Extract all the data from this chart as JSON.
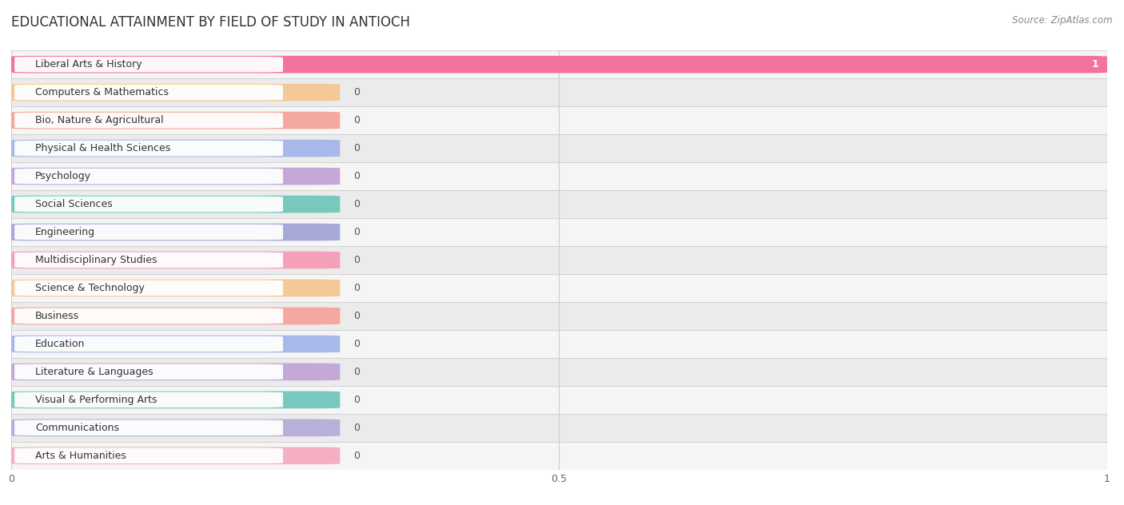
{
  "title": "EDUCATIONAL ATTAINMENT BY FIELD OF STUDY IN ANTIOCH",
  "source": "Source: ZipAtlas.com",
  "categories": [
    "Liberal Arts & History",
    "Computers & Mathematics",
    "Bio, Nature & Agricultural",
    "Physical & Health Sciences",
    "Psychology",
    "Social Sciences",
    "Engineering",
    "Multidisciplinary Studies",
    "Science & Technology",
    "Business",
    "Education",
    "Literature & Languages",
    "Visual & Performing Arts",
    "Communications",
    "Arts & Humanities"
  ],
  "values": [
    1,
    0,
    0,
    0,
    0,
    0,
    0,
    0,
    0,
    0,
    0,
    0,
    0,
    0,
    0
  ],
  "bar_colors": [
    "#F472A0",
    "#F5C897",
    "#F4A8A0",
    "#A8B8E8",
    "#C4A8D8",
    "#78C8BE",
    "#A8A8D8",
    "#F4A0B8",
    "#F5C897",
    "#F4A8A0",
    "#A8B8E8",
    "#C4A8D8",
    "#78C8BE",
    "#B8B0D8",
    "#F4B0C0"
  ],
  "xlim": [
    0,
    1
  ],
  "xticks": [
    0,
    0.5,
    1
  ],
  "background_color": "#ffffff",
  "row_bg_even": "#f5f5f5",
  "row_bg_odd": "#ebebeb",
  "grid_color": "#cccccc",
  "title_fontsize": 12,
  "label_fontsize": 9,
  "value_fontsize": 9
}
